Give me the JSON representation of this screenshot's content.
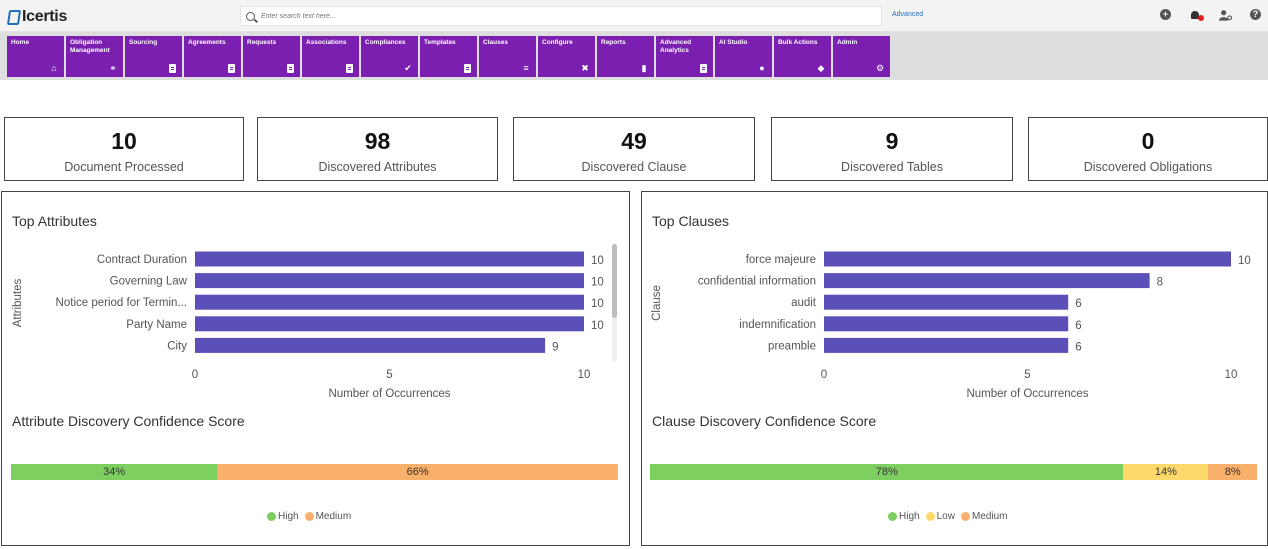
{
  "header": {
    "logo_text": "Icertis",
    "search_placeholder": "Enter search text here...",
    "advanced_link": "Advanced",
    "icons": [
      "add-circle-icon",
      "notification-bell-icon",
      "user-settings-icon",
      "help-icon"
    ],
    "accent_color": "#7a1fb0"
  },
  "nav": {
    "items": [
      {
        "label": "Home",
        "icon": "home-icon"
      },
      {
        "label": "Obligation Management",
        "icon": "handshake-icon"
      },
      {
        "label": "Sourcing",
        "icon": "document-icon"
      },
      {
        "label": "Agreements",
        "icon": "document-icon"
      },
      {
        "label": "Requests",
        "icon": "document-icon"
      },
      {
        "label": "Associations",
        "icon": "document-icon"
      },
      {
        "label": "Compliances",
        "icon": "checklist-icon"
      },
      {
        "label": "Templates",
        "icon": "document-icon"
      },
      {
        "label": "Clauses",
        "icon": "text-lines-icon"
      },
      {
        "label": "Configure",
        "icon": "tools-icon"
      },
      {
        "label": "Reports",
        "icon": "clipboard-icon"
      },
      {
        "label": "Advanced Analytics",
        "icon": "document-icon"
      },
      {
        "label": "AI Studio",
        "icon": "lightbulb-icon"
      },
      {
        "label": "Bulk Actions",
        "icon": "layers-icon"
      },
      {
        "label": "Admin",
        "icon": "users-gear-icon"
      }
    ]
  },
  "stats": [
    {
      "value": "10",
      "label": "Document Processed"
    },
    {
      "value": "98",
      "label": "Discovered Attributes"
    },
    {
      "value": "49",
      "label": "Discovered Clause"
    },
    {
      "value": "9",
      "label": "Discovered Tables"
    },
    {
      "value": "0",
      "label": "Discovered Obligations"
    }
  ],
  "left_panel": {
    "title": "Top Attributes",
    "confidence_title": "Attribute Discovery Confidence Score",
    "confidence_segments": [
      {
        "label": "34%",
        "value": 34,
        "color": "#7dcf5f"
      },
      {
        "label": "66%",
        "value": 66,
        "color": "#f9b06a"
      }
    ],
    "legend": [
      {
        "label": "High",
        "color": "#7dcf5f"
      },
      {
        "label": "Medium",
        "color": "#f9b06a"
      }
    ]
  },
  "right_panel": {
    "title": "Top Clauses",
    "confidence_title": "Clause Discovery Confidence Score",
    "confidence_segments": [
      {
        "label": "78%",
        "value": 78,
        "color": "#7dcf5f"
      },
      {
        "label": "14%",
        "value": 14,
        "color": "#fbd96b"
      },
      {
        "label": "8%",
        "value": 8,
        "color": "#f9b06a"
      }
    ],
    "legend": [
      {
        "label": "High",
        "color": "#7dcf5f"
      },
      {
        "label": "Low",
        "color": "#fbd96b"
      },
      {
        "label": "Medium",
        "color": "#f9b06a"
      }
    ]
  },
  "chart_data": [
    {
      "type": "bar",
      "orientation": "horizontal",
      "title": "Top Attributes",
      "categories": [
        "Contract Duration",
        "Governing Law",
        "Notice period for Termin...",
        "Party Name",
        "City"
      ],
      "values": [
        10,
        10,
        10,
        10,
        9
      ],
      "xlabel": "Number of Occurrences",
      "ylabel": "Attributes",
      "xlim": [
        0,
        10
      ],
      "xticks": [
        0,
        5,
        10
      ],
      "bar_color": "#5b4fb8",
      "grid": false
    },
    {
      "type": "bar",
      "orientation": "horizontal",
      "title": "Top Clauses",
      "categories": [
        "force majeure",
        "confidential information",
        "audit",
        "indemnification",
        "preamble"
      ],
      "values": [
        10,
        8,
        6,
        6,
        6
      ],
      "xlabel": "Number of Occurrences",
      "ylabel": "Clause",
      "xlim": [
        0,
        10
      ],
      "xticks": [
        0,
        5,
        10
      ],
      "bar_color": "#5b4fb8",
      "grid": false
    }
  ]
}
